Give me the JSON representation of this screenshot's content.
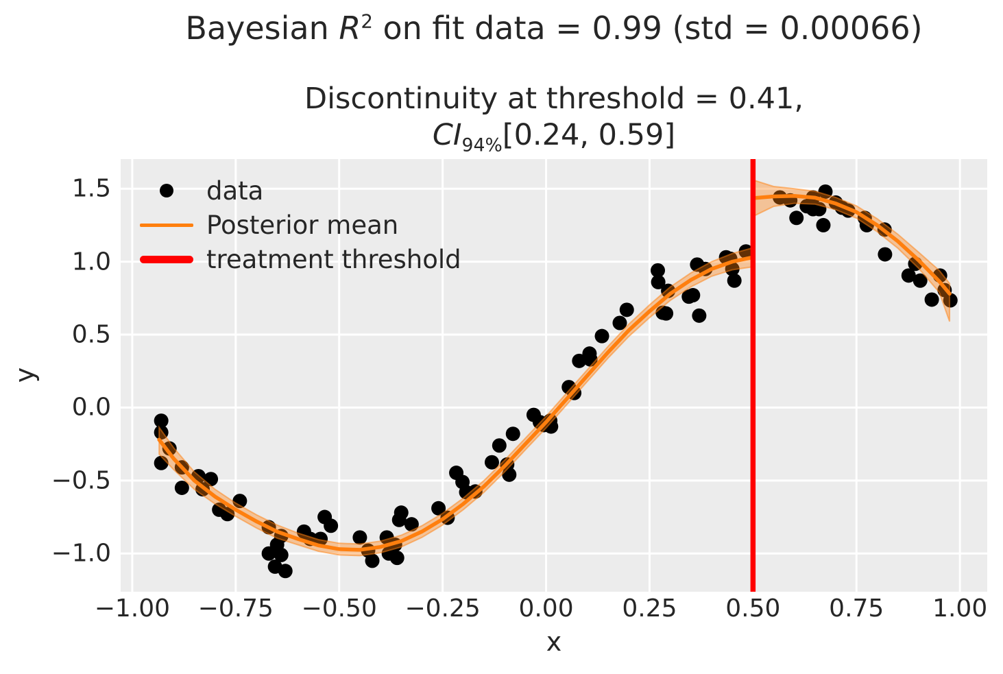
{
  "titles": {
    "suptitle_prefix": "Bayesian ",
    "suptitle_var": "R",
    "suptitle_sup": "2",
    "suptitle_rest": " on fit data = 0.99 (std = 0.00066)",
    "subtitle_line1": "Discontinuity at threshold = 0.41,",
    "subtitle_ci_var": "CI",
    "subtitle_ci_sub": "94%",
    "subtitle_ci_rest": "[0.24, 0.59]"
  },
  "chart_data": {
    "type": "scatter",
    "xlabel": "x",
    "ylabel": "y",
    "xlim": [
      -1.028,
      1.066
    ],
    "ylim": [
      -1.262,
      1.703
    ],
    "grid": true,
    "background_color": "#ececec",
    "gridline_color": "#ffffff",
    "text_color": "#262626",
    "x_ticks": {
      "values": [
        -1.0,
        -0.75,
        -0.5,
        -0.25,
        0.0,
        0.25,
        0.5,
        0.75,
        1.0
      ],
      "labels": [
        "−1.00",
        "−0.75",
        "−0.50",
        "−0.25",
        "0.00",
        "0.25",
        "0.50",
        "0.75",
        "1.00"
      ]
    },
    "y_ticks": {
      "values": [
        1.5,
        1.0,
        0.5,
        0.0,
        -0.5,
        -1.0
      ],
      "labels": [
        "1.5",
        "1.0",
        "0.5",
        "0.0",
        "−0.5",
        "−1.0"
      ]
    },
    "stats": {
      "bayes_r2": "0.99",
      "bayes_r2_std": "0.00066",
      "discontinuity": "0.41",
      "ci_level": "94%",
      "ci_low": "0.24",
      "ci_high": "0.59"
    },
    "threshold": {
      "x": 0.5,
      "color": "#ff0000",
      "line_width": 7.5
    },
    "legend": {
      "position": "upper-left",
      "frame": false,
      "items": [
        {
          "label": "data",
          "marker": "dot",
          "color": "#000000"
        },
        {
          "label": "Posterior mean",
          "marker": "line",
          "color": "#ff7f0e"
        },
        {
          "label": "treatment threshold",
          "marker": "thick-line",
          "color": "#ff0000"
        }
      ]
    },
    "series": [
      {
        "name": "data",
        "type": "scatter",
        "color": "#000000",
        "marker_radius": 10.5,
        "points": [
          [
            -0.93,
            -0.09
          ],
          [
            -0.93,
            -0.17
          ],
          [
            -0.93,
            -0.38
          ],
          [
            -0.91,
            -0.28
          ],
          [
            -0.88,
            -0.41
          ],
          [
            -0.88,
            -0.55
          ],
          [
            -0.84,
            -0.47
          ],
          [
            -0.81,
            -0.49
          ],
          [
            -0.83,
            -0.56
          ],
          [
            -0.79,
            -0.7
          ],
          [
            -0.77,
            -0.73
          ],
          [
            -0.74,
            -0.64
          ],
          [
            -0.67,
            -0.82
          ],
          [
            -0.64,
            -0.88
          ],
          [
            -0.65,
            -0.94
          ],
          [
            -0.67,
            -1.0
          ],
          [
            -0.64,
            -1.01
          ],
          [
            -0.655,
            -1.09
          ],
          [
            -0.63,
            -1.12
          ],
          [
            -0.585,
            -0.85
          ],
          [
            -0.57,
            -0.9
          ],
          [
            -0.545,
            -0.9
          ],
          [
            -0.535,
            -0.75
          ],
          [
            -0.52,
            -0.81
          ],
          [
            -0.45,
            -0.89
          ],
          [
            -0.43,
            -0.98
          ],
          [
            -0.42,
            -1.05
          ],
          [
            -0.385,
            -0.89
          ],
          [
            -0.38,
            -1.0
          ],
          [
            -0.365,
            -0.94
          ],
          [
            -0.36,
            -1.03
          ],
          [
            -0.35,
            -0.72
          ],
          [
            -0.355,
            -0.77
          ],
          [
            -0.325,
            -0.8
          ],
          [
            -0.26,
            -0.69
          ],
          [
            -0.238,
            -0.755
          ],
          [
            -0.217,
            -0.447
          ],
          [
            -0.202,
            -0.51
          ],
          [
            -0.193,
            -0.58
          ],
          [
            -0.171,
            -0.575
          ],
          [
            -0.131,
            -0.375
          ],
          [
            -0.113,
            -0.26
          ],
          [
            -0.094,
            -0.39
          ],
          [
            -0.089,
            -0.46
          ],
          [
            -0.08,
            -0.18
          ],
          [
            -0.03,
            -0.05
          ],
          [
            -0.015,
            -0.1
          ],
          [
            -0.005,
            -0.12
          ],
          [
            0.01,
            -0.09
          ],
          [
            0.012,
            -0.13
          ],
          [
            0.055,
            0.14
          ],
          [
            0.068,
            0.1
          ],
          [
            0.08,
            0.32
          ],
          [
            0.105,
            0.37
          ],
          [
            0.107,
            0.33
          ],
          [
            0.135,
            0.49
          ],
          [
            0.178,
            0.58
          ],
          [
            0.195,
            0.67
          ],
          [
            0.27,
            0.94
          ],
          [
            0.271,
            0.86
          ],
          [
            0.295,
            0.8
          ],
          [
            0.282,
            0.65
          ],
          [
            0.29,
            0.645
          ],
          [
            0.345,
            0.76
          ],
          [
            0.355,
            0.77
          ],
          [
            0.365,
            0.98
          ],
          [
            0.385,
            0.95
          ],
          [
            0.37,
            0.63
          ],
          [
            0.435,
            1.03
          ],
          [
            0.445,
            1.02
          ],
          [
            0.45,
            0.95
          ],
          [
            0.455,
            0.87
          ],
          [
            0.483,
            1.07
          ],
          [
            0.565,
            1.44
          ],
          [
            0.59,
            1.42
          ],
          [
            0.605,
            1.3
          ],
          [
            0.63,
            1.38
          ],
          [
            0.645,
            1.36
          ],
          [
            0.66,
            1.36
          ],
          [
            0.645,
            1.44
          ],
          [
            0.675,
            1.48
          ],
          [
            0.67,
            1.25
          ],
          [
            0.7,
            1.405
          ],
          [
            0.715,
            1.37
          ],
          [
            0.73,
            1.35
          ],
          [
            0.77,
            1.3
          ],
          [
            0.775,
            1.25
          ],
          [
            0.818,
            1.22
          ],
          [
            0.819,
            1.05
          ],
          [
            0.876,
            0.905
          ],
          [
            0.892,
            0.985
          ],
          [
            0.904,
            0.87
          ],
          [
            0.952,
            0.905
          ],
          [
            0.932,
            0.74
          ],
          [
            0.963,
            0.805
          ],
          [
            0.977,
            0.735
          ]
        ]
      },
      {
        "name": "Posterior mean",
        "type": "line-with-band",
        "color": "#ff7f0e",
        "band_opacity": 0.38,
        "line_width": 5.5,
        "segments": [
          {
            "x": [
              -0.935,
              -0.9,
              -0.85,
              -0.8,
              -0.75,
              -0.7,
              -0.65,
              -0.6,
              -0.55,
              -0.5,
              -0.45,
              -0.4,
              -0.35,
              -0.3,
              -0.25,
              -0.2,
              -0.15,
              -0.1,
              -0.05,
              0.0,
              0.05,
              0.1,
              0.15,
              0.2,
              0.25,
              0.3,
              0.35,
              0.4,
              0.45,
              0.5
            ],
            "mean": [
              -0.22,
              -0.35,
              -0.5,
              -0.61,
              -0.7,
              -0.78,
              -0.85,
              -0.9,
              -0.945,
              -0.97,
              -0.975,
              -0.955,
              -0.915,
              -0.85,
              -0.765,
              -0.66,
              -0.54,
              -0.4,
              -0.25,
              -0.1,
              0.06,
              0.22,
              0.38,
              0.53,
              0.66,
              0.78,
              0.875,
              0.95,
              1.0,
              1.03
            ],
            "upper": [
              -0.135,
              -0.275,
              -0.44,
              -0.56,
              -0.655,
              -0.735,
              -0.805,
              -0.86,
              -0.905,
              -0.93,
              -0.935,
              -0.915,
              -0.875,
              -0.81,
              -0.725,
              -0.62,
              -0.5,
              -0.36,
              -0.21,
              -0.06,
              0.1,
              0.26,
              0.42,
              0.572,
              0.704,
              0.826,
              0.923,
              1.0,
              1.056,
              1.095
            ],
            "lower": [
              -0.32,
              -0.425,
              -0.56,
              -0.66,
              -0.745,
              -0.825,
              -0.895,
              -0.94,
              -0.985,
              -1.01,
              -1.015,
              -0.995,
              -0.955,
              -0.89,
              -0.805,
              -0.7,
              -0.58,
              -0.44,
              -0.29,
              -0.14,
              0.02,
              0.18,
              0.34,
              0.488,
              0.616,
              0.734,
              0.827,
              0.9,
              0.944,
              0.965
            ]
          },
          {
            "x": [
              0.5,
              0.55,
              0.6,
              0.65,
              0.7,
              0.75,
              0.8,
              0.85,
              0.9,
              0.95,
              0.975
            ],
            "mean": [
              1.435,
              1.447,
              1.45,
              1.438,
              1.398,
              1.34,
              1.25,
              1.14,
              1.01,
              0.865,
              0.78
            ],
            "upper": [
              1.56,
              1.515,
              1.5,
              1.482,
              1.44,
              1.382,
              1.294,
              1.188,
              1.065,
              0.94,
              0.85
            ],
            "lower": [
              1.31,
              1.379,
              1.4,
              1.394,
              1.356,
              1.298,
              1.206,
              1.092,
              0.955,
              0.79,
              0.59
            ]
          }
        ]
      }
    ]
  }
}
